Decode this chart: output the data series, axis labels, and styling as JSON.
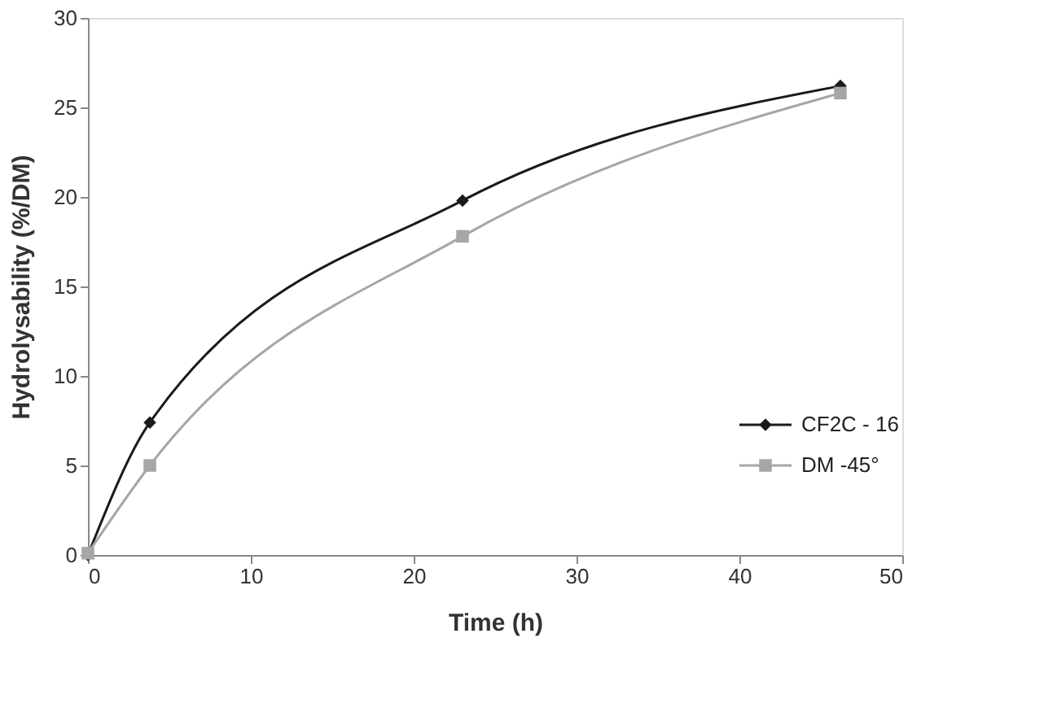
{
  "chart_data": {
    "type": "line",
    "xlabel": "Time (h)",
    "ylabel": "Hydrolysability (%/DM)",
    "xlim": [
      0,
      50
    ],
    "xticks": [
      0,
      10,
      20,
      30,
      40,
      50
    ],
    "ylim": [
      0,
      30
    ],
    "yticks": [
      0,
      5,
      10,
      15,
      20,
      25,
      30
    ],
    "grid": false,
    "legend": "bottom right",
    "line_style": "solid",
    "series": [
      {
        "name": "CF2C - 16",
        "color": "#1a1a1a",
        "marker": "diamond",
        "x": [
          0,
          3.8,
          23,
          46.2
        ],
        "values": [
          0,
          7.4,
          19.8,
          26.2
        ]
      },
      {
        "name": "DM -45°",
        "color": "#a6a6a6",
        "marker": "square",
        "x": [
          0,
          3.8,
          23,
          46.2
        ],
        "values": [
          0.1,
          5.0,
          17.8,
          25.8
        ]
      }
    ]
  }
}
